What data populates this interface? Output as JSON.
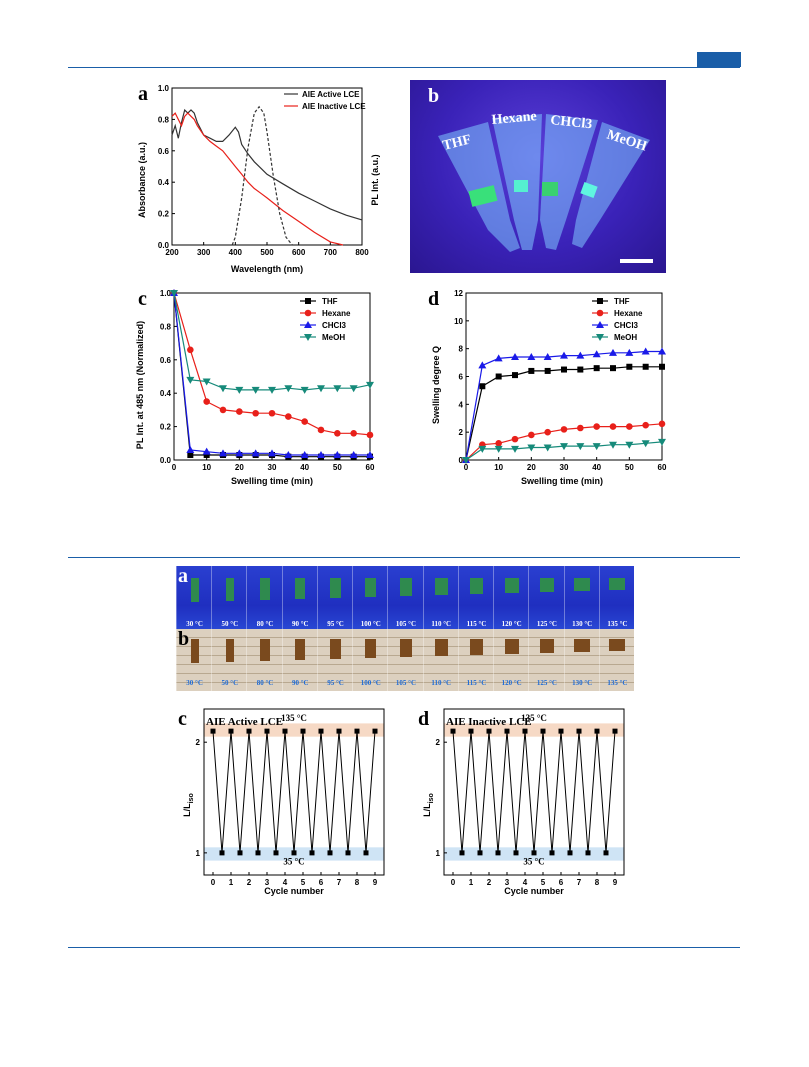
{
  "figure1": {
    "panel_a": {
      "label": "a",
      "legend": [
        "AIE Active LCE",
        "AIE Inactive LCE"
      ],
      "xlabel": "Wavelength (nm)",
      "ylabel_left": "Absorbance (a.u.)",
      "ylabel_right": "PL Int. (a.u.)",
      "xticks": [
        "200",
        "300",
        "400",
        "500",
        "600",
        "700",
        "800"
      ],
      "yticks": [
        "0.0",
        "0.2",
        "0.4",
        "0.6",
        "0.8",
        "1.0"
      ]
    },
    "panel_b": {
      "label": "b",
      "tubes": [
        "THF",
        "Hexane",
        "CHCl3",
        "MeOH"
      ]
    },
    "panel_c": {
      "label": "c",
      "xlabel": "Swelling time (min)",
      "ylabel": "PL Int. at 485 nm (Normalized)",
      "legend": [
        "THF",
        "Hexane",
        "CHCl3",
        "MeOH"
      ],
      "xticks": [
        "0",
        "10",
        "20",
        "30",
        "40",
        "50",
        "60"
      ],
      "yticks": [
        "0.0",
        "0.2",
        "0.4",
        "0.6",
        "0.8",
        "1.0"
      ]
    },
    "panel_d": {
      "label": "d",
      "xlabel": "Swelling time (min)",
      "ylabel": "Swelling degree Q",
      "legend": [
        "THF",
        "Hexane",
        "CHCl3",
        "MeOH"
      ],
      "xticks": [
        "0",
        "10",
        "20",
        "30",
        "40",
        "50",
        "60"
      ],
      "yticks": [
        "0",
        "2",
        "4",
        "6",
        "8",
        "10",
        "12"
      ]
    }
  },
  "figure2": {
    "panel_a_label": "a",
    "panel_b_label": "b",
    "temperatures": [
      "30 °C",
      "50 °C",
      "80 °C",
      "90 °C",
      "95 °C",
      "100 °C",
      "105 °C",
      "110 °C",
      "115 °C",
      "120 °C",
      "125 °C",
      "130 °C",
      "135 °C"
    ],
    "panel_c": {
      "label": "c",
      "title": "AIE Active LCE",
      "high_label": "135 °C",
      "low_label": "35 °C"
    },
    "panel_d": {
      "label": "d",
      "title": "AIE Inactive LCE",
      "high_label": "135 °C",
      "low_label": "35 °C"
    },
    "cycle_xlabel": "Cycle number",
    "cycle_ylabel": "L/L",
    "cycle_ylabel_sub": "iso",
    "cycle_xticks": [
      "0",
      "1",
      "2",
      "3",
      "4",
      "5",
      "6",
      "7",
      "8",
      "9"
    ],
    "cycle_yticks": [
      "1",
      "2"
    ]
  },
  "colors": {
    "accent": "#1a5ea8",
    "THF": "#000000",
    "Hexane": "#e8201a",
    "CHCl3": "#1a1ae8",
    "MeOH": "#168a7a"
  },
  "chart_data": [
    {
      "type": "line",
      "id": "fig1a",
      "xlabel": "Wavelength (nm)",
      "ylabel": "Absorbance (a.u.)",
      "xlim": [
        200,
        800
      ],
      "ylim": [
        0,
        1.0
      ],
      "series": [
        {
          "name": "AIE Active LCE",
          "color": "#333333",
          "x": [
            200,
            210,
            220,
            230,
            240,
            250,
            260,
            270,
            280,
            300,
            320,
            340,
            360,
            380,
            400,
            410,
            420,
            440,
            460,
            480,
            500,
            550,
            600,
            650,
            700,
            750,
            800
          ],
          "y": [
            0.7,
            0.76,
            0.68,
            0.78,
            0.86,
            0.84,
            0.86,
            0.84,
            0.78,
            0.7,
            0.68,
            0.66,
            0.66,
            0.7,
            0.75,
            0.72,
            0.64,
            0.58,
            0.53,
            0.49,
            0.45,
            0.39,
            0.33,
            0.28,
            0.23,
            0.19,
            0.16
          ]
        },
        {
          "name": "AIE Inactive LCE",
          "color": "#e8201a",
          "x": [
            200,
            210,
            220,
            230,
            240,
            250,
            260,
            270,
            280,
            300,
            320,
            340,
            360,
            380,
            400,
            420,
            440,
            460,
            480,
            500,
            550,
            600,
            650,
            700,
            740
          ],
          "y": [
            0.82,
            0.84,
            0.8,
            0.76,
            0.82,
            0.84,
            0.82,
            0.8,
            0.76,
            0.7,
            0.66,
            0.63,
            0.6,
            0.55,
            0.5,
            0.45,
            0.4,
            0.36,
            0.33,
            0.3,
            0.22,
            0.15,
            0.08,
            0.02,
            0.0
          ]
        },
        {
          "name": "PL",
          "color": "#333333",
          "dashed": true,
          "x": [
            390,
            400,
            420,
            440,
            460,
            475,
            490,
            500,
            520,
            540,
            560,
            580
          ],
          "y": [
            0.0,
            0.05,
            0.3,
            0.62,
            0.84,
            0.88,
            0.84,
            0.72,
            0.44,
            0.2,
            0.05,
            0.0
          ]
        }
      ]
    },
    {
      "type": "line",
      "id": "fig1c",
      "xlabel": "Swelling time (min)",
      "ylabel": "PL Int. at 485 nm (Normalized)",
      "xlim": [
        0,
        60
      ],
      "ylim": [
        0,
        1.0
      ],
      "x": [
        0,
        5,
        10,
        15,
        20,
        25,
        30,
        35,
        40,
        45,
        50,
        55,
        60
      ],
      "series": [
        {
          "name": "THF",
          "marker": "square",
          "color": "#000000",
          "y": [
            1.0,
            0.03,
            0.03,
            0.03,
            0.03,
            0.03,
            0.03,
            0.02,
            0.02,
            0.02,
            0.02,
            0.02,
            0.02
          ]
        },
        {
          "name": "Hexane",
          "marker": "circle",
          "color": "#e8201a",
          "y": [
            1.0,
            0.66,
            0.35,
            0.3,
            0.29,
            0.28,
            0.28,
            0.26,
            0.23,
            0.18,
            0.16,
            0.16,
            0.15
          ]
        },
        {
          "name": "CHCl3",
          "marker": "triangle-up",
          "color": "#1a1ae8",
          "y": [
            1.0,
            0.06,
            0.05,
            0.04,
            0.04,
            0.04,
            0.04,
            0.03,
            0.03,
            0.03,
            0.03,
            0.03,
            0.03
          ]
        },
        {
          "name": "MeOH",
          "marker": "triangle-down",
          "color": "#168a7a",
          "y": [
            1.0,
            0.48,
            0.47,
            0.43,
            0.42,
            0.42,
            0.42,
            0.43,
            0.42,
            0.43,
            0.43,
            0.43,
            0.45
          ]
        }
      ]
    },
    {
      "type": "line",
      "id": "fig1d",
      "xlabel": "Swelling time (min)",
      "ylabel": "Swelling degree Q",
      "xlim": [
        0,
        60
      ],
      "ylim": [
        0,
        12
      ],
      "x": [
        0,
        5,
        10,
        15,
        20,
        25,
        30,
        35,
        40,
        45,
        50,
        55,
        60
      ],
      "series": [
        {
          "name": "THF",
          "marker": "square",
          "color": "#000000",
          "y": [
            0,
            5.3,
            6.0,
            6.1,
            6.4,
            6.4,
            6.5,
            6.5,
            6.6,
            6.6,
            6.7,
            6.7,
            6.7
          ]
        },
        {
          "name": "Hexane",
          "marker": "circle",
          "color": "#e8201a",
          "y": [
            0,
            1.1,
            1.2,
            1.5,
            1.8,
            2.0,
            2.2,
            2.3,
            2.4,
            2.4,
            2.4,
            2.5,
            2.6
          ]
        },
        {
          "name": "CHCl3",
          "marker": "triangle-up",
          "color": "#1a1ae8",
          "y": [
            0,
            6.8,
            7.3,
            7.4,
            7.4,
            7.4,
            7.5,
            7.5,
            7.6,
            7.7,
            7.7,
            7.8,
            7.8
          ]
        },
        {
          "name": "MeOH",
          "marker": "triangle-down",
          "color": "#168a7a",
          "y": [
            0,
            0.8,
            0.8,
            0.8,
            0.9,
            0.9,
            1.0,
            1.0,
            1.0,
            1.1,
            1.1,
            1.2,
            1.3
          ]
        }
      ]
    },
    {
      "type": "line",
      "id": "fig2c",
      "xlabel": "Cycle number",
      "ylabel": "L/Liso",
      "xlim": [
        -0.5,
        9.5
      ],
      "ylim": [
        0.8,
        2.3
      ],
      "x": [
        0,
        0.5,
        1,
        1.5,
        2,
        2.5,
        3,
        3.5,
        4,
        4.5,
        5,
        5.5,
        6,
        6.5,
        7,
        7.5,
        8,
        8.5,
        9
      ],
      "series": [
        {
          "name": "L/Liso",
          "y": [
            2.1,
            1.0,
            2.1,
            1.0,
            2.1,
            1.0,
            2.1,
            1.0,
            2.1,
            1.0,
            2.1,
            1.0,
            2.1,
            1.0,
            2.1,
            1.0,
            2.1,
            1.0,
            2.1
          ]
        }
      ]
    },
    {
      "type": "line",
      "id": "fig2d",
      "xlabel": "Cycle number",
      "ylabel": "L/Liso",
      "xlim": [
        -0.5,
        9.5
      ],
      "ylim": [
        0.8,
        2.3
      ],
      "x": [
        0,
        0.5,
        1,
        1.5,
        2,
        2.5,
        3,
        3.5,
        4,
        4.5,
        5,
        5.5,
        6,
        6.5,
        7,
        7.5,
        8,
        8.5,
        9
      ],
      "series": [
        {
          "name": "L/Liso",
          "y": [
            2.1,
            1.0,
            2.1,
            1.0,
            2.1,
            1.0,
            2.1,
            1.0,
            2.1,
            1.0,
            2.1,
            1.0,
            2.1,
            1.0,
            2.1,
            1.0,
            2.1,
            1.0,
            2.1
          ]
        }
      ]
    }
  ]
}
